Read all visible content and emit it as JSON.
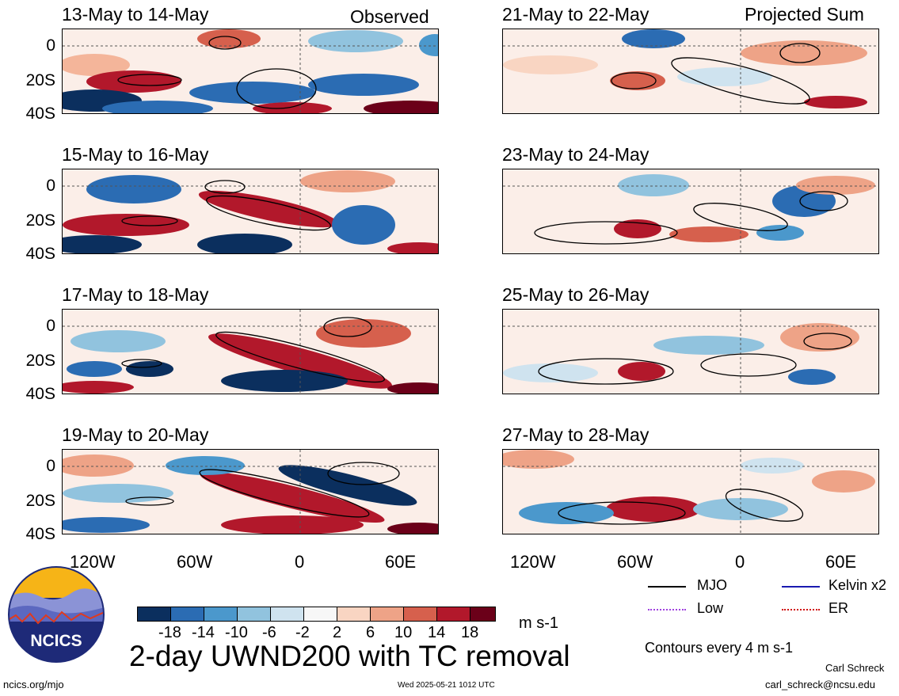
{
  "panels_left": [
    {
      "title": "13-May to 14-May",
      "tag": "Observed"
    },
    {
      "title": "15-May to 16-May",
      "tag": ""
    },
    {
      "title": "17-May to 18-May",
      "tag": ""
    },
    {
      "title": "19-May to 20-May",
      "tag": ""
    }
  ],
  "panels_right": [
    {
      "title": "21-May to 22-May",
      "tag": "Projected Sum"
    },
    {
      "title": "23-May to 24-May",
      "tag": ""
    },
    {
      "title": "25-May to 26-May",
      "tag": ""
    },
    {
      "title": "27-May to 28-May",
      "tag": ""
    }
  ],
  "y_axis": [
    "0",
    "20S",
    "40S"
  ],
  "x_axis": [
    "120W",
    "60W",
    "0",
    "60E"
  ],
  "colorbar": {
    "labels": [
      "-18",
      "-14",
      "-10",
      "-6",
      "-2",
      "2",
      "6",
      "10",
      "14",
      "18"
    ],
    "colors": [
      "#0b2f5e",
      "#2b6cb3",
      "#4b98cc",
      "#91c3de",
      "#cfe3ef",
      "#f7f7f7",
      "#f9d5c2",
      "#eea387",
      "#d6604d",
      "#b2182b",
      "#6b0019"
    ],
    "units": "m s-1"
  },
  "legend": {
    "mjo": "MJO",
    "kelvin": "Kelvin x2",
    "low": "Low",
    "er": "ER",
    "contours": "Contours every 4 m s-1"
  },
  "title": "2-day UWND200 with TC removal",
  "logo_text": "NCICS",
  "footer": {
    "left": "ncics.org/mjo",
    "center": "Wed 2025-05-21 1012 UTC",
    "author": "Carl Schreck",
    "email": "carl_schreck@ncsu.edu"
  }
}
